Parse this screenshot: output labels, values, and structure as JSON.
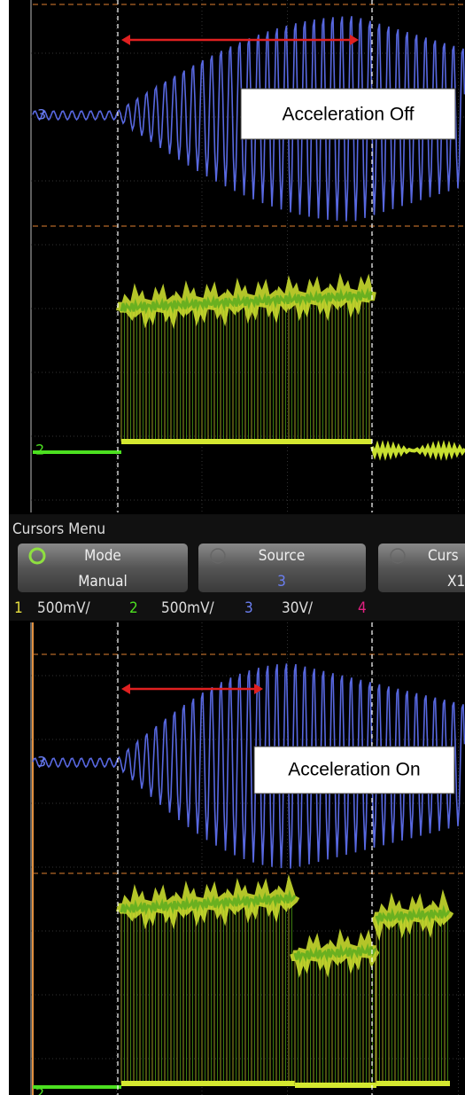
{
  "top_panel": {
    "annotation": "Acceleration Off",
    "channel_markers": [
      "3",
      "2"
    ]
  },
  "cursors_menu": {
    "title": "Cursors Menu",
    "buttons": [
      {
        "label": "Mode",
        "value": "Manual"
      },
      {
        "label": "Source",
        "value": "3"
      },
      {
        "label": "Curs",
        "value": "X1"
      }
    ],
    "channels": [
      {
        "number": "1",
        "scale": "500mV/"
      },
      {
        "number": "2",
        "scale": "500mV/"
      },
      {
        "number": "3",
        "scale": "30V/"
      },
      {
        "number": "4"
      }
    ]
  },
  "bottom_panel": {
    "annotation": "Acceleration On",
    "channel_markers": [
      "3",
      "2"
    ]
  }
}
